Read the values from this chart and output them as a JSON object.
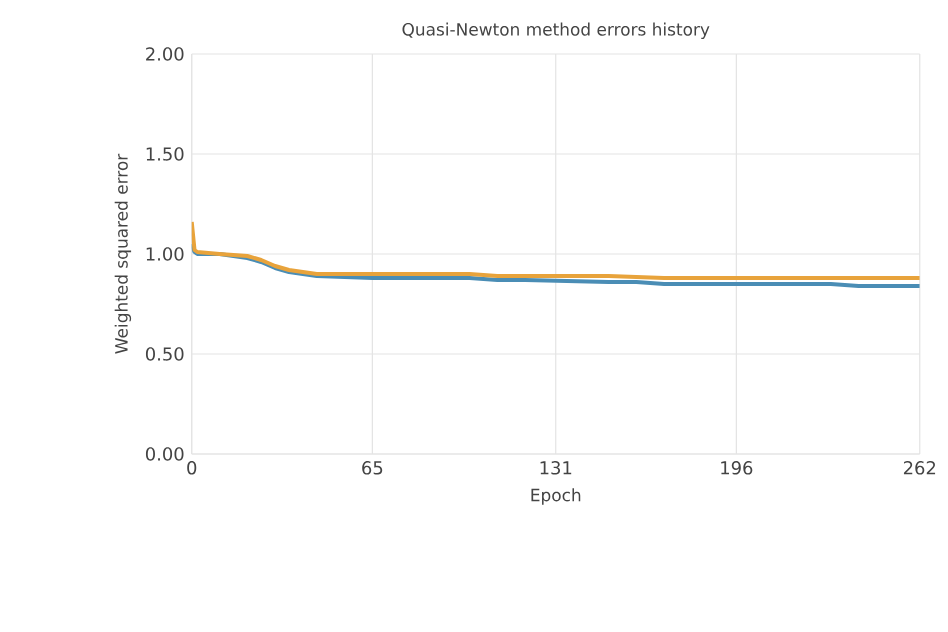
{
  "chart_data": {
    "type": "line",
    "title": "Quasi-Newton method errors history",
    "xlabel": "Epoch",
    "ylabel": "Weighted squared error",
    "xlim": [
      0,
      262
    ],
    "ylim": [
      0,
      2
    ],
    "xticks": [
      0,
      65,
      131,
      196,
      262
    ],
    "yticks": [
      {
        "value": 0,
        "label": "0.00"
      },
      {
        "value": 0.5,
        "label": "0.50"
      },
      {
        "value": 1,
        "label": "1.00"
      },
      {
        "value": 1.5,
        "label": "1.50"
      },
      {
        "value": 2,
        "label": "2.00"
      }
    ],
    "grid": true,
    "marker": "none",
    "line_style": "solid",
    "series": [
      {
        "color": "#4a8db5",
        "x": [
          0,
          1,
          2,
          10,
          20,
          25,
          30,
          35,
          40,
          45,
          65,
          100,
          110,
          120,
          150,
          160,
          170,
          200,
          230,
          240,
          262
        ],
        "values": [
          1.05,
          1.01,
          1.0,
          1.0,
          0.98,
          0.96,
          0.93,
          0.91,
          0.9,
          0.89,
          0.88,
          0.88,
          0.87,
          0.87,
          0.86,
          0.86,
          0.85,
          0.85,
          0.85,
          0.84,
          0.84
        ]
      },
      {
        "color": "#e8a33b",
        "x": [
          0,
          1,
          2,
          10,
          20,
          25,
          30,
          35,
          40,
          45,
          65,
          100,
          110,
          150,
          170,
          200,
          230,
          262
        ],
        "values": [
          1.16,
          1.02,
          1.01,
          1.0,
          0.99,
          0.97,
          0.94,
          0.92,
          0.91,
          0.9,
          0.9,
          0.9,
          0.89,
          0.89,
          0.88,
          0.88,
          0.88,
          0.88
        ]
      }
    ]
  }
}
